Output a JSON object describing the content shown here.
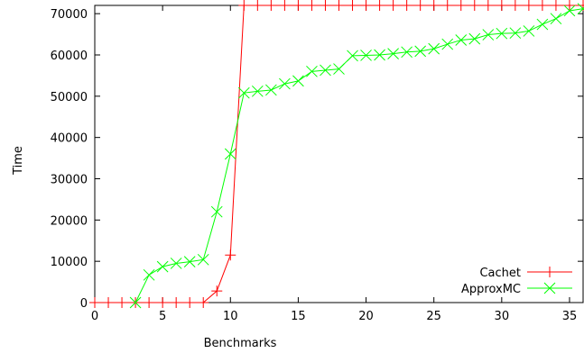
{
  "chart_data": {
    "type": "line",
    "title": "",
    "xlabel": "Benchmarks",
    "ylabel": "Time",
    "xlim": [
      0,
      36
    ],
    "ylim": [
      0,
      72000
    ],
    "xticks": [
      0,
      5,
      10,
      15,
      20,
      25,
      30,
      35
    ],
    "yticks": [
      0,
      10000,
      20000,
      30000,
      40000,
      50000,
      60000,
      70000
    ],
    "grid": false,
    "legend_position": "bottom-right",
    "series": [
      {
        "name": "Cachet",
        "color": "#ff0000",
        "marker": "plus",
        "x": [
          0,
          1,
          2,
          3,
          4,
          5,
          6,
          7,
          8,
          9,
          10,
          11,
          12,
          13,
          14,
          15,
          16,
          17,
          18,
          19,
          20,
          21,
          22,
          23,
          24,
          25,
          26,
          27,
          28,
          29,
          30,
          31,
          32,
          33,
          34,
          35,
          36
        ],
        "y": [
          0,
          0,
          0,
          0,
          0,
          0,
          0,
          0,
          0,
          2800,
          11500,
          72000,
          72000,
          72000,
          72000,
          72000,
          72000,
          72000,
          72000,
          72000,
          72000,
          72000,
          72000,
          72000,
          72000,
          72000,
          72000,
          72000,
          72000,
          72000,
          72000,
          72000,
          72000,
          72000,
          72000,
          72000,
          72000
        ]
      },
      {
        "name": "ApproxMC",
        "color": "#00ff00",
        "marker": "x",
        "x": [
          3,
          4,
          5,
          6,
          7,
          8,
          9,
          10,
          11,
          12,
          13,
          14,
          15,
          16,
          17,
          18,
          19,
          20,
          21,
          22,
          23,
          24,
          25,
          26,
          27,
          28,
          29,
          30,
          31,
          32,
          33,
          34,
          35,
          36
        ],
        "y": [
          0,
          6700,
          8700,
          9500,
          9900,
          10400,
          22000,
          36000,
          50800,
          51200,
          51500,
          53000,
          53700,
          56000,
          56300,
          56600,
          59800,
          59900,
          60000,
          60300,
          60700,
          60900,
          61500,
          62600,
          63600,
          63900,
          64900,
          65200,
          65300,
          65800,
          67400,
          68800,
          70700,
          71200
        ]
      }
    ]
  }
}
